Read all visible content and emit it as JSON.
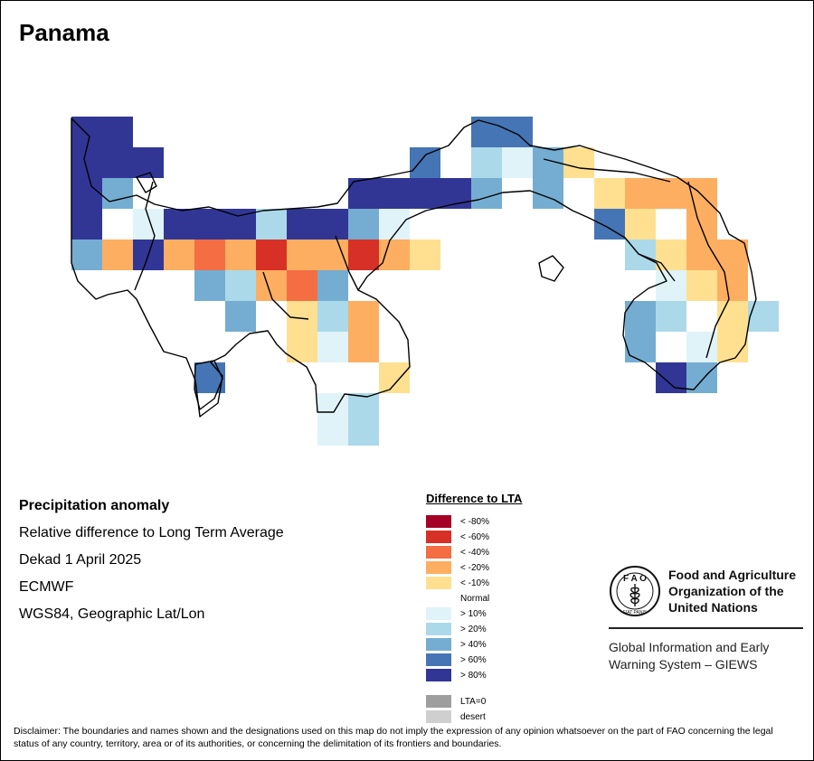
{
  "map": {
    "title": "Panama",
    "country": "Panama"
  },
  "info": {
    "variable": "Precipitation anomaly",
    "description": "Relative difference to Long Term Average",
    "period": "Dekad 1 April 2025",
    "source": "ECMWF",
    "projection": "WGS84, Geographic Lat/Lon"
  },
  "legend": {
    "title": "Difference to LTA",
    "classes": [
      {
        "label": "< -80%",
        "color": "#a50026"
      },
      {
        "label": "< -60%",
        "color": "#d73027"
      },
      {
        "label": "< -40%",
        "color": "#f46d43"
      },
      {
        "label": "< -20%",
        "color": "#fdae61"
      },
      {
        "label": "< -10%",
        "color": "#fee090"
      },
      {
        "label": "Normal",
        "color": "#ffffff"
      },
      {
        "label": "> 10%",
        "color": "#e0f3f8"
      },
      {
        "label": "> 20%",
        "color": "#abd9e9"
      },
      {
        "label": "> 40%",
        "color": "#74add1"
      },
      {
        "label": "> 60%",
        "color": "#4575b4"
      },
      {
        "label": "> 80%",
        "color": "#313695"
      }
    ],
    "extra": [
      {
        "label": "LTA=0",
        "color": "#9e9e9e"
      },
      {
        "label": "desert",
        "color": "#cfcfcf"
      }
    ]
  },
  "fao": {
    "acronym": "FAO",
    "motto": "FIAT PANIS",
    "name_line1": "Food and Agriculture",
    "name_line2": "Organization of the",
    "name_line3": "United Nations",
    "giews_line1": "Global Information and Early",
    "giews_line2": "Warning System – GIEWS"
  },
  "disclaimer": "Disclaimer: The boundaries and names shown and the designations used on this map do not imply the expression of any opinion whatsoever on the part of FAO concerning the legal status of any country, territory, area or of its authorities, or concerning the delimitation of its frontiers and boundaries."
}
